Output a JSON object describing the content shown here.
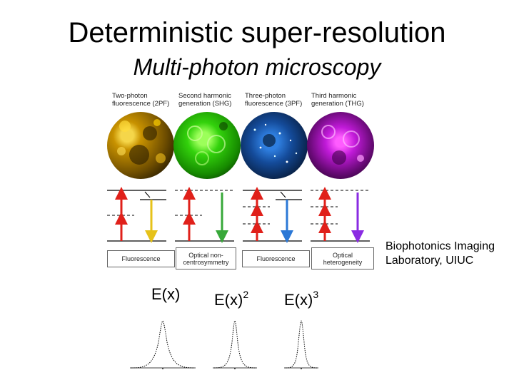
{
  "title": "Deterministic super-resolution",
  "subtitle": "Multi-photon microscopy",
  "channels": [
    {
      "label_l1": "Two-photon",
      "label_l2": "fluorescence (2PF)",
      "color": "#e8b900",
      "arrow_color": "#e6c21a"
    },
    {
      "label_l1": "Second harmonic",
      "label_l2": "generation (SHG)",
      "color": "#3fe01a",
      "arrow_color": "#38a83a"
    },
    {
      "label_l1": "Three-photon",
      "label_l2": "fluorescence (3PF)",
      "color": "#1c62c8",
      "arrow_color": "#2b78d6"
    },
    {
      "label_l1": "Third harmonic",
      "label_l2": "generation (THG)",
      "color": "#c21ee0",
      "arrow_color": "#8a2be2"
    }
  ],
  "boxes": [
    {
      "l1": "Fluorescence",
      "l2": ""
    },
    {
      "l1": "Optical non-",
      "l2": "centrosymmetry"
    },
    {
      "l1": "Fluorescence",
      "l2": ""
    },
    {
      "l1": "Optical",
      "l2": "heterogeneity"
    }
  ],
  "credit": {
    "l1": "Biophotonics Imaging",
    "l2": "Laboratory, UIUC"
  },
  "fields": [
    {
      "base": "E(x)",
      "exp": ""
    },
    {
      "base": "E(x)",
      "exp": "2"
    },
    {
      "base": "E(x)",
      "exp": "3"
    }
  ],
  "colors": {
    "excitation_arrow": "#e0201a"
  }
}
